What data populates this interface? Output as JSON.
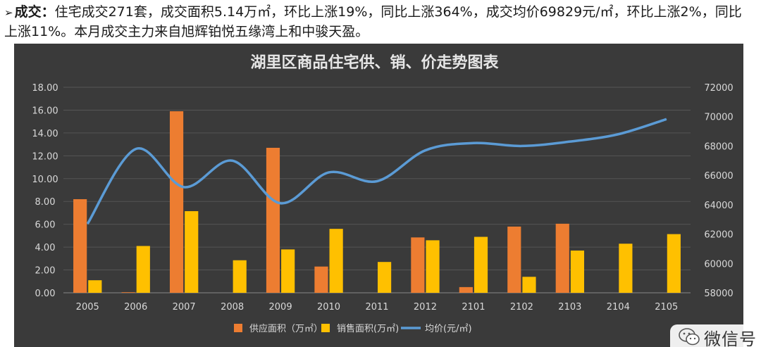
{
  "intro": {
    "bullet": "➢",
    "lead": "成交：",
    "body": "住宅成交271套，成交面积5.14万㎡，环比上涨19%，同比上涨364%，成交均价69829元/㎡，环比上涨2%，同比上涨11%。本月成交主力来自旭辉铂悦五缘湾上和中骏天盈。"
  },
  "watermark": {
    "text": "微信号",
    "icon": "wechat-icon"
  },
  "colors": {
    "background": "#3a3a3a",
    "grid": "#555555",
    "text": "#d9d9d9",
    "supply": "#ed7d31",
    "sales": "#ffc000",
    "price": "#5b9bd5"
  },
  "chart_data": {
    "type": "bar",
    "title": "湖里区商品住宅供、销、价走势图表",
    "categories": [
      "2005",
      "2006",
      "2007",
      "2008",
      "2009",
      "2010",
      "2011",
      "2012",
      "2101",
      "2102",
      "2103",
      "2104",
      "2105"
    ],
    "series": [
      {
        "name": "供应面积（万㎡）",
        "type": "bar",
        "axis": "left",
        "values": [
          8.2,
          0.05,
          15.9,
          0,
          12.7,
          2.3,
          0,
          4.85,
          0.5,
          5.8,
          6.05,
          0,
          0
        ]
      },
      {
        "name": "销售面积(万㎡)",
        "type": "bar",
        "axis": "left",
        "values": [
          1.1,
          4.1,
          7.15,
          2.85,
          3.8,
          5.6,
          2.7,
          4.6,
          4.9,
          1.4,
          3.7,
          4.3,
          5.14
        ]
      },
      {
        "name": "均价(元/㎡)",
        "type": "line",
        "axis": "right",
        "values": [
          62700,
          67800,
          65200,
          67000,
          64100,
          66200,
          65600,
          67700,
          68200,
          68000,
          68300,
          68800,
          69829
        ]
      }
    ],
    "y_left": {
      "range": [
        0,
        18
      ],
      "ticks": [
        "0.00",
        "2.00",
        "4.00",
        "6.00",
        "8.00",
        "10.00",
        "12.00",
        "14.00",
        "16.00",
        "18.00"
      ]
    },
    "y_right": {
      "range": [
        58000,
        72000
      ],
      "ticks": [
        "58000",
        "60000",
        "62000",
        "64000",
        "66000",
        "68000",
        "70000",
        "72000"
      ]
    },
    "grid": true,
    "legend": "bottom"
  }
}
